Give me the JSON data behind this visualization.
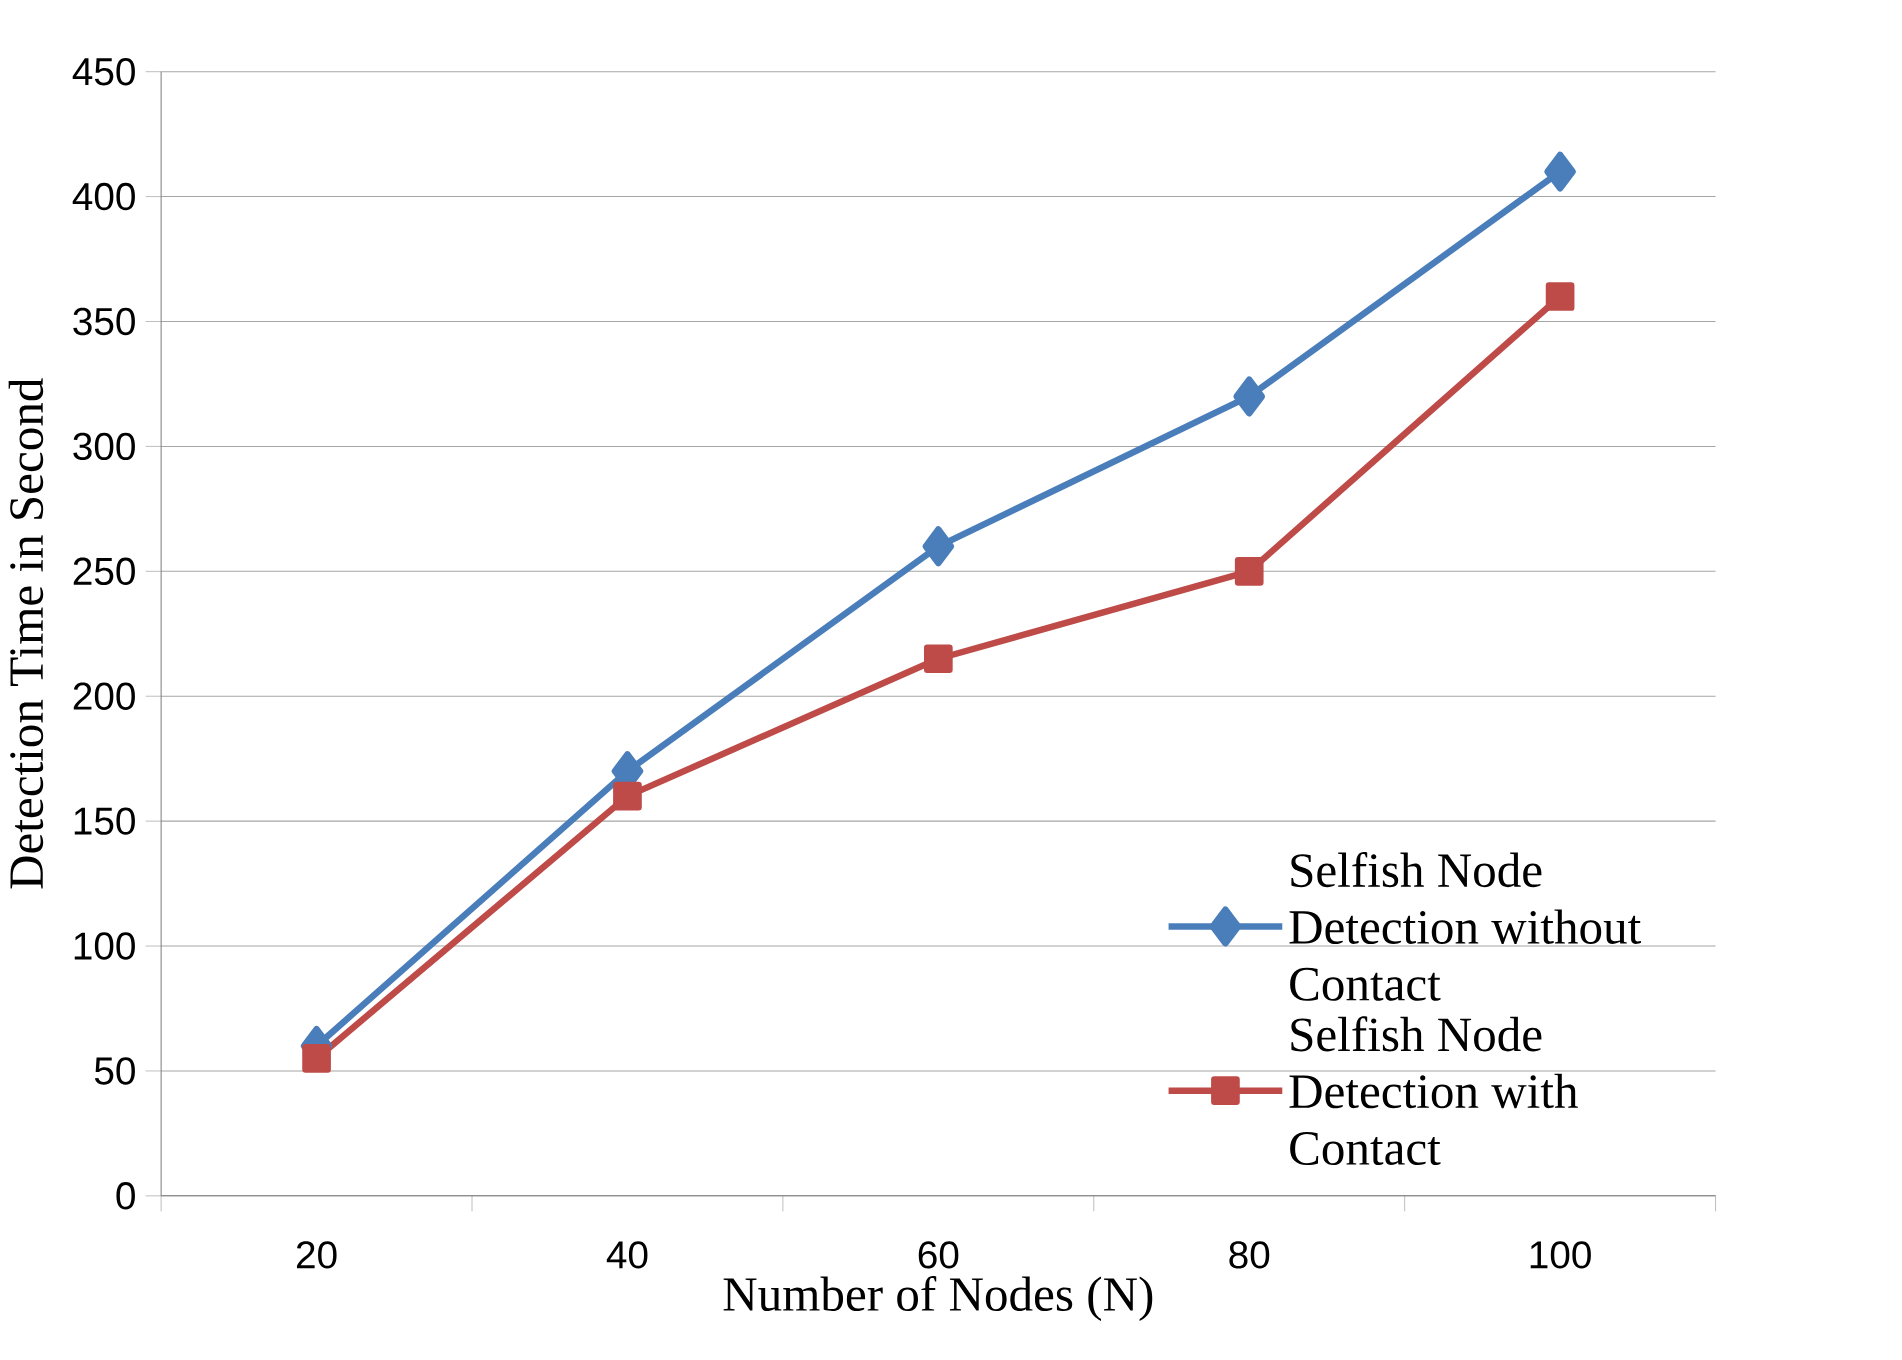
{
  "chart_data": {
    "type": "line",
    "xlabel": "Number of Nodes (N)",
    "ylabel": "Detection Time in Second",
    "categories": [
      "20",
      "40",
      "60",
      "80",
      "100"
    ],
    "series": [
      {
        "name": "Selfish Node Detection without Contact",
        "color": "#4a7ebb",
        "marker": "diamond",
        "values": [
          60,
          170,
          260,
          320,
          410
        ]
      },
      {
        "name": "Selfish Node Detection with Contact",
        "color": "#be4b48",
        "marker": "square",
        "values": [
          55,
          160,
          215,
          250,
          360
        ]
      }
    ],
    "ylim": [
      0,
      450
    ],
    "yticks": [
      0,
      50,
      100,
      150,
      200,
      250,
      300,
      350,
      400,
      450
    ],
    "grid": "y",
    "legend": "bottom right"
  }
}
